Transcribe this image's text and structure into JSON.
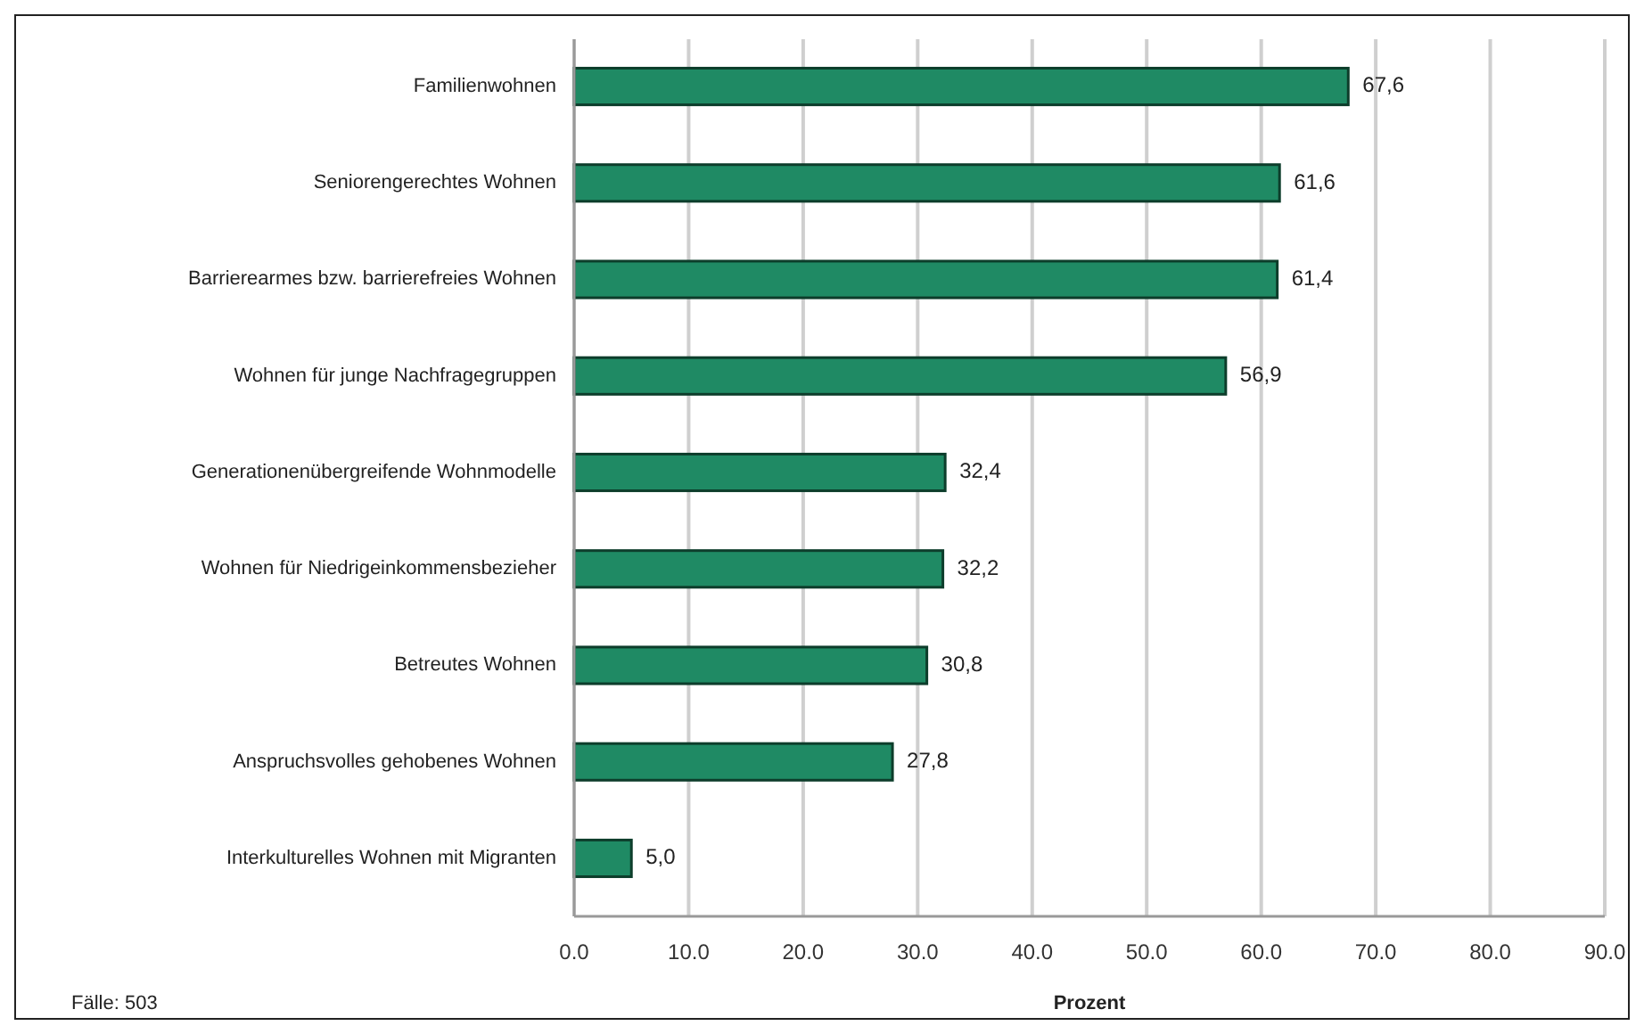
{
  "chart_data": {
    "type": "bar",
    "orientation": "horizontal",
    "xlabel": "Prozent",
    "categories": [
      "Familienwohnen",
      "Seniorengerechtes Wohnen",
      "Barrierearmes bzw. barrierefreies Wohnen",
      "Wohnen für junge Nachfragegruppen",
      "Generationenübergreifende Wohnmodelle",
      "Wohnen für Niedrigeinkommensbezieher",
      "Betreutes Wohnen",
      "Anspruchsvolles gehobenes Wohnen",
      "Interkulturelles Wohnen mit Migranten"
    ],
    "values": [
      67.6,
      61.6,
      61.4,
      56.9,
      32.4,
      32.2,
      30.8,
      27.8,
      5.0
    ],
    "value_labels": [
      "67,6",
      "61,6",
      "61,4",
      "56,9",
      "32,4",
      "32,2",
      "30,8",
      "27,8",
      "5,0"
    ],
    "color": "#1f8a64",
    "xlim": [
      0,
      90
    ],
    "xticks": [
      {
        "value": 0,
        "label": "0.0"
      },
      {
        "value": 10,
        "label": "10.0"
      },
      {
        "value": 20,
        "label": "20.0"
      },
      {
        "value": 30,
        "label": "30.0"
      },
      {
        "value": 40,
        "label": "40.0"
      },
      {
        "value": 50,
        "label": "50.0"
      },
      {
        "value": 60,
        "label": "60.0"
      },
      {
        "value": 70,
        "label": "70.0"
      },
      {
        "value": 80,
        "label": "80.0"
      },
      {
        "value": 90,
        "label": "90.0"
      }
    ],
    "grid": "x",
    "annotations": [
      "Fälle: 503"
    ]
  }
}
